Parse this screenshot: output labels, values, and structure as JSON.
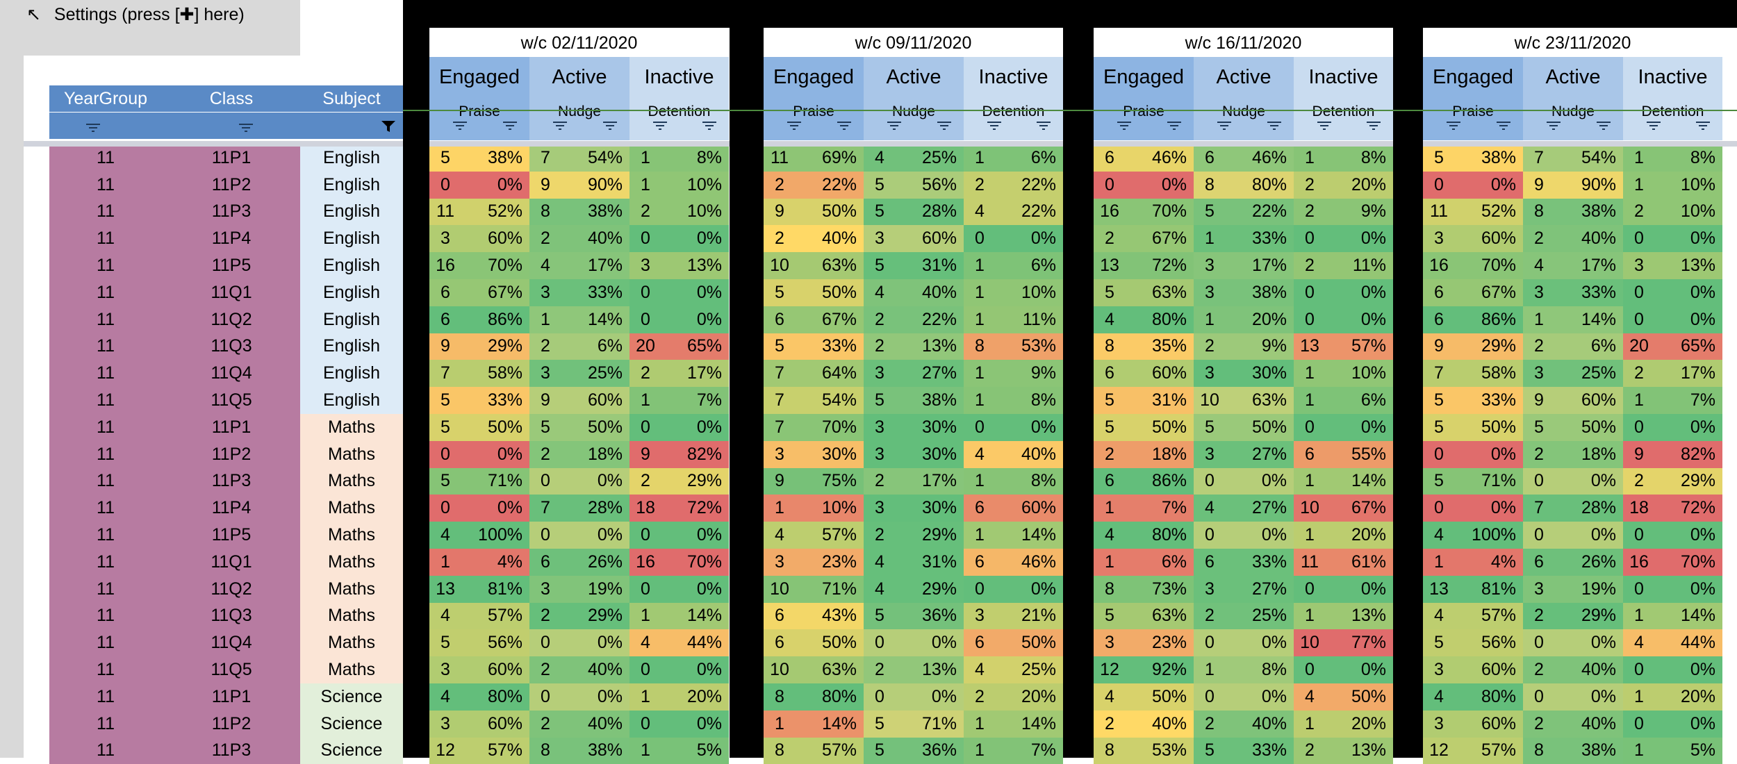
{
  "settings": {
    "arrow": "↖",
    "label": "Settings (press [✚] here)"
  },
  "headers": {
    "yeargroup": "YearGroup",
    "class": "Class",
    "subject": "Subject"
  },
  "column_groups": [
    {
      "title": "Engaged",
      "sub": "Praise"
    },
    {
      "title": "Active",
      "sub": "Nudge"
    },
    {
      "title": "Inactive",
      "sub": "Detention"
    }
  ],
  "subject_colors": {
    "English": "#ddebf7",
    "Maths": "#fbe5d6",
    "Science": "#e2efda"
  },
  "yeargroup_color": "#b77ba1",
  "weeks": [
    {
      "label": "w/c 02/11/2020",
      "rows": [
        [
          5,
          "38%",
          7,
          "54%",
          1,
          "8%"
        ],
        [
          0,
          "0%",
          9,
          "90%",
          1,
          "10%"
        ],
        [
          11,
          "52%",
          8,
          "38%",
          2,
          "10%"
        ],
        [
          3,
          "60%",
          2,
          "40%",
          0,
          "0%"
        ],
        [
          16,
          "70%",
          4,
          "17%",
          3,
          "13%"
        ],
        [
          6,
          "67%",
          3,
          "33%",
          0,
          "0%"
        ],
        [
          6,
          "86%",
          1,
          "14%",
          0,
          "0%"
        ],
        [
          9,
          "29%",
          2,
          "6%",
          20,
          "65%"
        ],
        [
          7,
          "58%",
          3,
          "25%",
          2,
          "17%"
        ],
        [
          5,
          "33%",
          9,
          "60%",
          1,
          "7%"
        ],
        [
          5,
          "50%",
          5,
          "50%",
          0,
          "0%"
        ],
        [
          0,
          "0%",
          2,
          "18%",
          9,
          "82%"
        ],
        [
          5,
          "71%",
          0,
          "0%",
          2,
          "29%"
        ],
        [
          0,
          "0%",
          7,
          "28%",
          18,
          "72%"
        ],
        [
          4,
          "100%",
          0,
          "0%",
          0,
          "0%"
        ],
        [
          1,
          "4%",
          6,
          "26%",
          16,
          "70%"
        ],
        [
          13,
          "81%",
          3,
          "19%",
          0,
          "0%"
        ],
        [
          4,
          "57%",
          2,
          "29%",
          1,
          "14%"
        ],
        [
          5,
          "56%",
          0,
          "0%",
          4,
          "44%"
        ],
        [
          3,
          "60%",
          2,
          "40%",
          0,
          "0%"
        ],
        [
          4,
          "80%",
          0,
          "0%",
          1,
          "20%"
        ],
        [
          3,
          "60%",
          2,
          "40%",
          0,
          "0%"
        ],
        [
          12,
          "57%",
          8,
          "38%",
          1,
          "5%"
        ]
      ]
    },
    {
      "label": "w/c 09/11/2020",
      "rows": [
        [
          11,
          "69%",
          4,
          "25%",
          1,
          "6%"
        ],
        [
          2,
          "22%",
          5,
          "56%",
          2,
          "22%"
        ],
        [
          9,
          "50%",
          5,
          "28%",
          4,
          "22%"
        ],
        [
          2,
          "40%",
          3,
          "60%",
          0,
          "0%"
        ],
        [
          10,
          "63%",
          5,
          "31%",
          1,
          "6%"
        ],
        [
          5,
          "50%",
          4,
          "40%",
          1,
          "10%"
        ],
        [
          6,
          "67%",
          2,
          "22%",
          1,
          "11%"
        ],
        [
          5,
          "33%",
          2,
          "13%",
          8,
          "53%"
        ],
        [
          7,
          "64%",
          3,
          "27%",
          1,
          "9%"
        ],
        [
          7,
          "54%",
          5,
          "38%",
          1,
          "8%"
        ],
        [
          7,
          "70%",
          3,
          "30%",
          0,
          "0%"
        ],
        [
          3,
          "30%",
          3,
          "30%",
          4,
          "40%"
        ],
        [
          9,
          "75%",
          2,
          "17%",
          1,
          "8%"
        ],
        [
          1,
          "10%",
          3,
          "30%",
          6,
          "60%"
        ],
        [
          4,
          "57%",
          2,
          "29%",
          1,
          "14%"
        ],
        [
          3,
          "23%",
          4,
          "31%",
          6,
          "46%"
        ],
        [
          10,
          "71%",
          4,
          "29%",
          0,
          "0%"
        ],
        [
          6,
          "43%",
          5,
          "36%",
          3,
          "21%"
        ],
        [
          6,
          "50%",
          0,
          "0%",
          6,
          "50%"
        ],
        [
          10,
          "63%",
          2,
          "13%",
          4,
          "25%"
        ],
        [
          8,
          "80%",
          0,
          "0%",
          2,
          "20%"
        ],
        [
          1,
          "14%",
          5,
          "71%",
          1,
          "14%"
        ],
        [
          8,
          "57%",
          5,
          "36%",
          1,
          "7%"
        ]
      ]
    },
    {
      "label": "w/c 16/11/2020",
      "rows": [
        [
          6,
          "46%",
          6,
          "46%",
          1,
          "8%"
        ],
        [
          0,
          "0%",
          8,
          "80%",
          2,
          "20%"
        ],
        [
          16,
          "70%",
          5,
          "22%",
          2,
          "9%"
        ],
        [
          2,
          "67%",
          1,
          "33%",
          0,
          "0%"
        ],
        [
          13,
          "72%",
          3,
          "17%",
          2,
          "11%"
        ],
        [
          5,
          "63%",
          3,
          "38%",
          0,
          "0%"
        ],
        [
          4,
          "80%",
          1,
          "20%",
          0,
          "0%"
        ],
        [
          8,
          "35%",
          2,
          "9%",
          13,
          "57%"
        ],
        [
          6,
          "60%",
          3,
          "30%",
          1,
          "10%"
        ],
        [
          5,
          "31%",
          10,
          "63%",
          1,
          "6%"
        ],
        [
          5,
          "50%",
          5,
          "50%",
          0,
          "0%"
        ],
        [
          2,
          "18%",
          3,
          "27%",
          6,
          "55%"
        ],
        [
          6,
          "86%",
          0,
          "0%",
          1,
          "14%"
        ],
        [
          1,
          "7%",
          4,
          "27%",
          10,
          "67%"
        ],
        [
          4,
          "80%",
          0,
          "0%",
          1,
          "20%"
        ],
        [
          1,
          "6%",
          6,
          "33%",
          11,
          "61%"
        ],
        [
          8,
          "73%",
          3,
          "27%",
          0,
          "0%"
        ],
        [
          5,
          "63%",
          2,
          "25%",
          1,
          "13%"
        ],
        [
          3,
          "23%",
          0,
          "0%",
          10,
          "77%"
        ],
        [
          12,
          "92%",
          1,
          "8%",
          0,
          "0%"
        ],
        [
          4,
          "50%",
          0,
          "0%",
          4,
          "50%"
        ],
        [
          2,
          "40%",
          2,
          "40%",
          1,
          "20%"
        ],
        [
          8,
          "53%",
          5,
          "33%",
          2,
          "13%"
        ]
      ]
    },
    {
      "label": "w/c 23/11/2020",
      "rows": [
        [
          5,
          "38%",
          7,
          "54%",
          1,
          "8%"
        ],
        [
          0,
          "0%",
          9,
          "90%",
          1,
          "10%"
        ],
        [
          11,
          "52%",
          8,
          "38%",
          2,
          "10%"
        ],
        [
          3,
          "60%",
          2,
          "40%",
          0,
          "0%"
        ],
        [
          16,
          "70%",
          4,
          "17%",
          3,
          "13%"
        ],
        [
          6,
          "67%",
          3,
          "33%",
          0,
          "0%"
        ],
        [
          6,
          "86%",
          1,
          "14%",
          0,
          "0%"
        ],
        [
          9,
          "29%",
          2,
          "6%",
          20,
          "65%"
        ],
        [
          7,
          "58%",
          3,
          "25%",
          2,
          "17%"
        ],
        [
          5,
          "33%",
          9,
          "60%",
          1,
          "7%"
        ],
        [
          5,
          "50%",
          5,
          "50%",
          0,
          "0%"
        ],
        [
          0,
          "0%",
          2,
          "18%",
          9,
          "82%"
        ],
        [
          5,
          "71%",
          0,
          "0%",
          2,
          "29%"
        ],
        [
          0,
          "0%",
          7,
          "28%",
          18,
          "72%"
        ],
        [
          4,
          "100%",
          0,
          "0%",
          0,
          "0%"
        ],
        [
          1,
          "4%",
          6,
          "26%",
          16,
          "70%"
        ],
        [
          13,
          "81%",
          3,
          "19%",
          0,
          "0%"
        ],
        [
          4,
          "57%",
          2,
          "29%",
          1,
          "14%"
        ],
        [
          5,
          "56%",
          0,
          "0%",
          4,
          "44%"
        ],
        [
          3,
          "60%",
          2,
          "40%",
          0,
          "0%"
        ],
        [
          4,
          "80%",
          0,
          "0%",
          1,
          "20%"
        ],
        [
          3,
          "60%",
          2,
          "40%",
          0,
          "0%"
        ],
        [
          12,
          "57%",
          8,
          "38%",
          1,
          "5%"
        ]
      ]
    }
  ],
  "rows": [
    {
      "year": "11",
      "class": "11P1",
      "subject": "English"
    },
    {
      "year": "11",
      "class": "11P2",
      "subject": "English"
    },
    {
      "year": "11",
      "class": "11P3",
      "subject": "English"
    },
    {
      "year": "11",
      "class": "11P4",
      "subject": "English"
    },
    {
      "year": "11",
      "class": "11P5",
      "subject": "English"
    },
    {
      "year": "11",
      "class": "11Q1",
      "subject": "English"
    },
    {
      "year": "11",
      "class": "11Q2",
      "subject": "English"
    },
    {
      "year": "11",
      "class": "11Q3",
      "subject": "English"
    },
    {
      "year": "11",
      "class": "11Q4",
      "subject": "English"
    },
    {
      "year": "11",
      "class": "11Q5",
      "subject": "English"
    },
    {
      "year": "11",
      "class": "11P1",
      "subject": "Maths"
    },
    {
      "year": "11",
      "class": "11P2",
      "subject": "Maths"
    },
    {
      "year": "11",
      "class": "11P3",
      "subject": "Maths"
    },
    {
      "year": "11",
      "class": "11P4",
      "subject": "Maths"
    },
    {
      "year": "11",
      "class": "11P5",
      "subject": "Maths"
    },
    {
      "year": "11",
      "class": "11Q1",
      "subject": "Maths"
    },
    {
      "year": "11",
      "class": "11Q2",
      "subject": "Maths"
    },
    {
      "year": "11",
      "class": "11Q3",
      "subject": "Maths"
    },
    {
      "year": "11",
      "class": "11Q4",
      "subject": "Maths"
    },
    {
      "year": "11",
      "class": "11Q5",
      "subject": "Maths"
    },
    {
      "year": "11",
      "class": "11P1",
      "subject": "Science"
    },
    {
      "year": "11",
      "class": "11P2",
      "subject": "Science"
    },
    {
      "year": "11",
      "class": "11P3",
      "subject": "Science"
    }
  ],
  "heatmap_colors": {
    "green": "#63be7b",
    "yellow": "#ffd966",
    "red": "#e06c6c"
  }
}
